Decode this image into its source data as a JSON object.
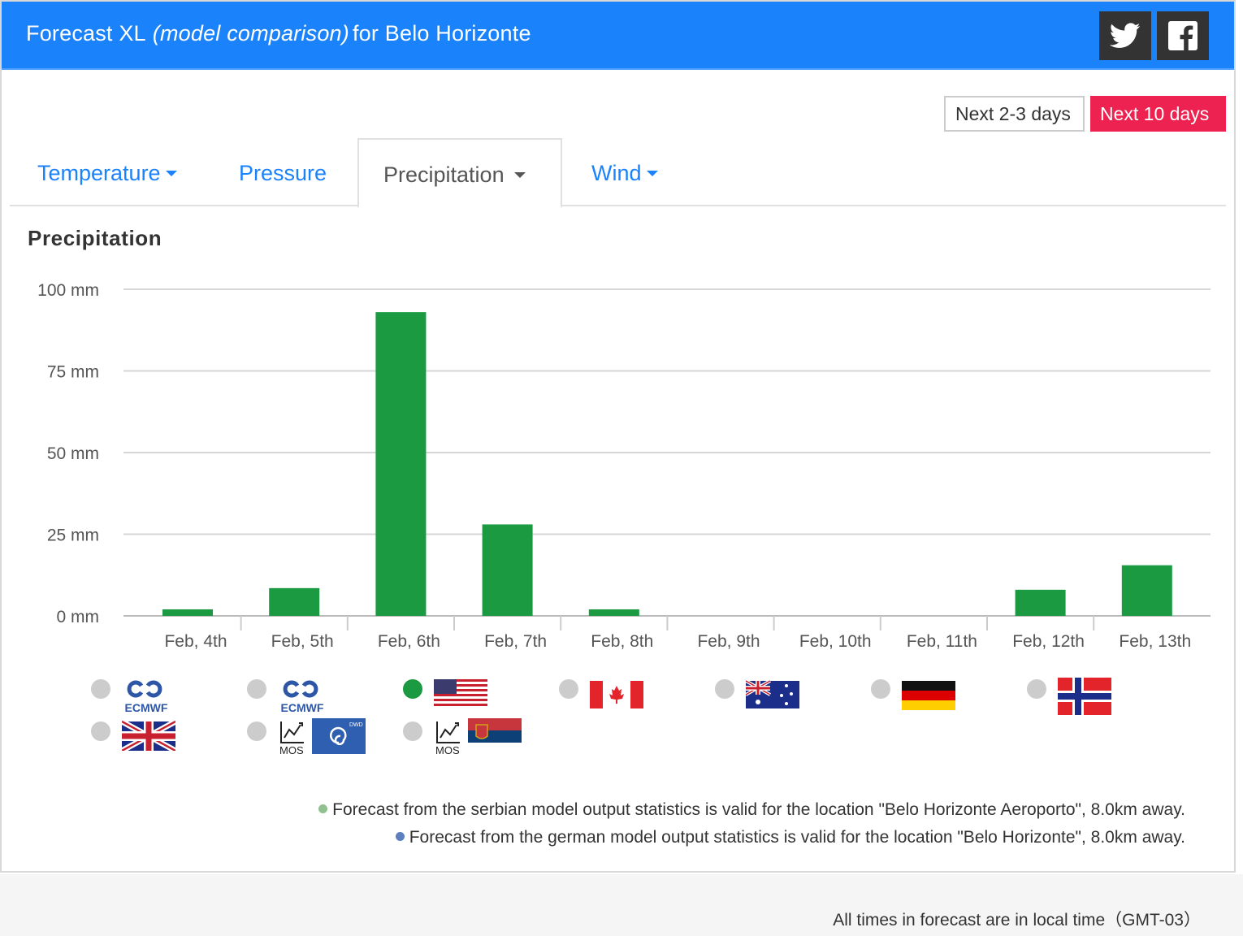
{
  "header": {
    "title_main": "Forecast XL",
    "title_model": "(model comparison)",
    "title_location": "for Belo Horizonte"
  },
  "social": {
    "twitter": "twitter-icon",
    "facebook": "facebook-icon"
  },
  "range": {
    "short": "Next 2-3 days",
    "long": "Next 10 days",
    "active": "long"
  },
  "tabs": [
    {
      "label": "Temperature",
      "dropdown": true
    },
    {
      "label": "Pressure",
      "dropdown": false
    },
    {
      "label": "Precipitation",
      "dropdown": true,
      "active": true
    },
    {
      "label": "Wind",
      "dropdown": true
    }
  ],
  "chart_title": "Precipitation",
  "chart_data": {
    "type": "bar",
    "categories": [
      "Feb, 4th",
      "Feb, 5th",
      "Feb, 6th",
      "Feb, 7th",
      "Feb, 8th",
      "Feb, 9th",
      "Feb, 10th",
      "Feb, 11th",
      "Feb, 12th",
      "Feb, 13th"
    ],
    "values": [
      2,
      8.5,
      93,
      28,
      2,
      0,
      0,
      0,
      8,
      15.5
    ],
    "yticks": [
      "0 mm",
      "25 mm",
      "50 mm",
      "75 mm",
      "100 mm"
    ],
    "ylim": [
      0,
      100
    ],
    "color": "#1b9a41",
    "grid": true
  },
  "models": [
    {
      "id": "ecmwf-hres",
      "icon": "ecmwf-logo-icon",
      "text": "ECMWF",
      "selected": false
    },
    {
      "id": "ecmwf-ens",
      "icon": "ecmwf-logo-icon",
      "text": "ECMWF",
      "selected": false
    },
    {
      "id": "usa",
      "icon": "usa-flag-icon",
      "selected": true
    },
    {
      "id": "canada",
      "icon": "canada-flag-icon",
      "selected": false
    },
    {
      "id": "australia",
      "icon": "australia-flag-icon",
      "selected": false
    },
    {
      "id": "germany",
      "icon": "germany-flag-icon",
      "selected": false
    },
    {
      "id": "norway",
      "icon": "norway-flag-icon",
      "selected": false
    },
    {
      "id": "uk",
      "icon": "uk-flag-icon",
      "selected": false
    },
    {
      "id": "dwd-mos",
      "icon": "dwd-mos-icon",
      "text": "MOS",
      "badge": "DWD",
      "selected": false
    },
    {
      "id": "serbia-mos",
      "icon": "serbia-mos-icon",
      "text": "MOS",
      "selected": false
    }
  ],
  "notes": [
    {
      "text": "Forecast from the serbian model output statistics is valid for the location \"Belo Horizonte Aeroporto\", 8.0km away.",
      "color": "#8fc08f"
    },
    {
      "text": "Forecast from the german model output statistics is valid for the location \"Belo Horizonte\", 8.0km away.",
      "color": "#5b7fbf"
    }
  ],
  "footer": {
    "timezone_note": "All times in forecast are in local time（GMT-03）"
  }
}
